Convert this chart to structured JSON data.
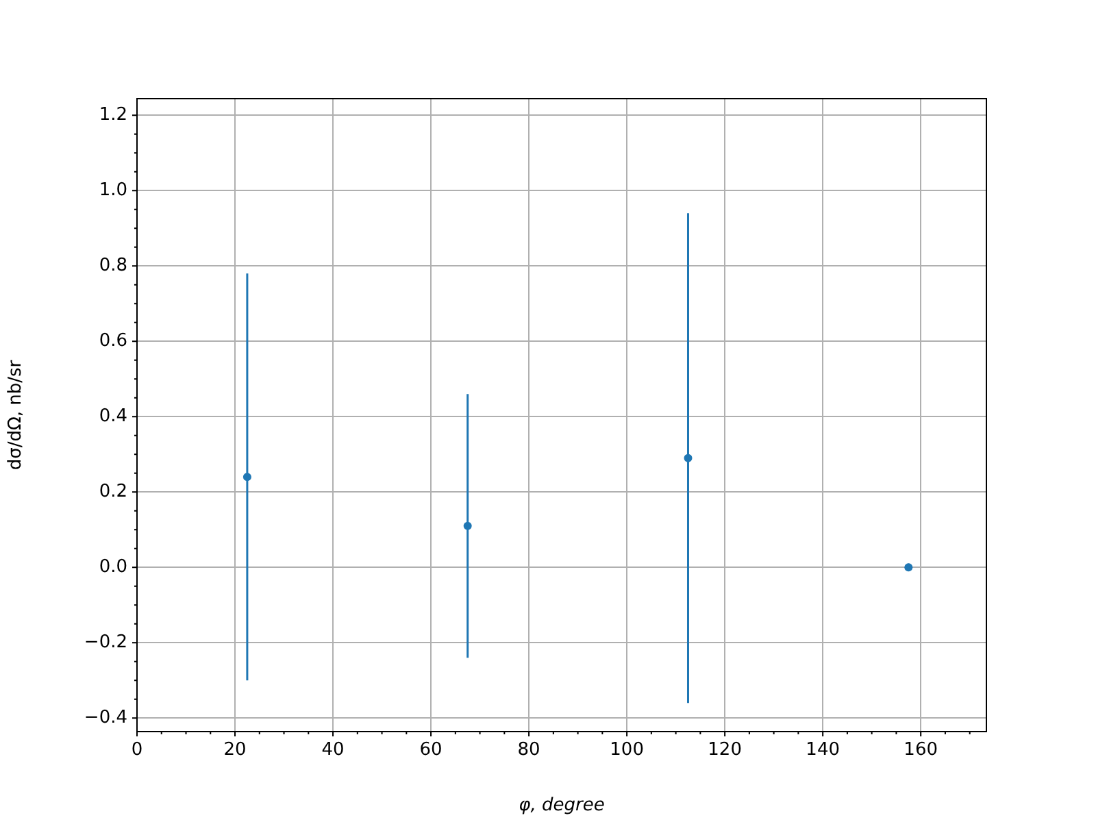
{
  "chart_data": {
    "type": "scatter",
    "xlabel": "φ, degree",
    "ylabel": "dσ/dΩ, nb/sr",
    "x": [
      22.5,
      67.5,
      112.5,
      157.5
    ],
    "values": [
      0.24,
      0.11,
      0.29,
      0.0
    ],
    "errors": [
      0.54,
      0.35,
      0.65,
      0.01
    ],
    "color": "#1f77b4",
    "marker": "circle",
    "grid": true,
    "legend": false,
    "xlim": [
      0,
      173.4
    ],
    "ylim": [
      -0.436,
      1.244
    ],
    "xticks": [
      0,
      20,
      40,
      60,
      80,
      100,
      120,
      140,
      160,
      {
        "value": 5,
        "label": null
      },
      {
        "value": 10,
        "label": null
      },
      {
        "value": 15,
        "label": null
      },
      {
        "value": 25,
        "label": null
      },
      {
        "value": 30,
        "label": null
      },
      {
        "value": 35,
        "label": null
      },
      {
        "value": 45,
        "label": null
      },
      {
        "value": 50,
        "label": null
      },
      {
        "value": 55,
        "label": null
      },
      {
        "value": 65,
        "label": null
      },
      {
        "value": 70,
        "label": null
      },
      {
        "value": 75,
        "label": null
      },
      {
        "value": 85,
        "label": null
      },
      {
        "value": 90,
        "label": null
      },
      {
        "value": 95,
        "label": null
      },
      {
        "value": 105,
        "label": null
      },
      {
        "value": 110,
        "label": null
      },
      {
        "value": 115,
        "label": null
      },
      {
        "value": 125,
        "label": null
      },
      {
        "value": 130,
        "label": null
      },
      {
        "value": 135,
        "label": null
      },
      {
        "value": 145,
        "label": null
      },
      {
        "value": 150,
        "label": null
      },
      {
        "value": 155,
        "label": null
      },
      {
        "value": 165,
        "label": null
      },
      {
        "value": 170,
        "label": null
      }
    ],
    "yticks": [
      {
        "value": -0.4,
        "label": "−0.4"
      },
      {
        "value": -0.2,
        "label": "−0.2"
      },
      {
        "value": 0,
        "label": "0.0"
      },
      0.2,
      0.4,
      0.6,
      0.8,
      {
        "value": 1,
        "label": "1.0"
      },
      1.2,
      {
        "value": -0.35,
        "label": null
      },
      {
        "value": -0.3,
        "label": null
      },
      {
        "value": -0.25,
        "label": null
      },
      {
        "value": -0.15,
        "label": null
      },
      {
        "value": -0.1,
        "label": null
      },
      {
        "value": -0.05,
        "label": null
      },
      {
        "value": 0.05,
        "label": null
      },
      {
        "value": 0.1,
        "label": null
      },
      {
        "value": 0.15,
        "label": null
      },
      {
        "value": 0.25,
        "label": null
      },
      {
        "value": 0.3,
        "label": null
      },
      {
        "value": 0.35,
        "label": null
      },
      {
        "value": 0.45,
        "label": null
      },
      {
        "value": 0.5,
        "label": null
      },
      {
        "value": 0.55,
        "label": null
      },
      {
        "value": 0.65,
        "label": null
      },
      {
        "value": 0.7,
        "label": null
      },
      {
        "value": 0.75,
        "label": null
      },
      {
        "value": 0.85,
        "label": null
      },
      {
        "value": 0.9,
        "label": null
      },
      {
        "value": 0.95,
        "label": null
      },
      {
        "value": 1.05,
        "label": null
      },
      {
        "value": 1.1,
        "label": null
      },
      {
        "value": 1.15,
        "label": null
      }
    ]
  }
}
